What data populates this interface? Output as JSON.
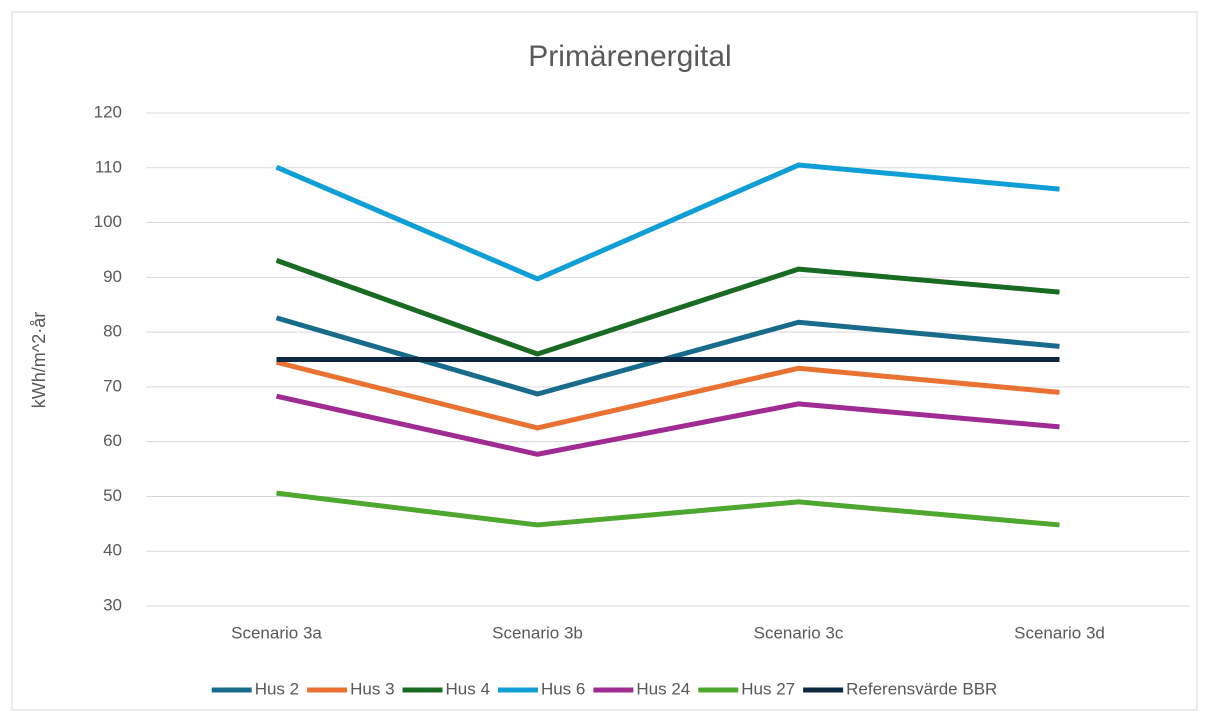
{
  "chart_data": {
    "type": "line",
    "title": "Primärenergital",
    "y_label": "kWh/m^2·år",
    "categories": [
      "Scenario 3a",
      "Scenario 3b",
      "Scenario 3c",
      "Scenario 3d"
    ],
    "series": [
      {
        "name": "Hus 2",
        "color": "#196B8C",
        "values": [
          82.6,
          68.7,
          81.8,
          77.4
        ]
      },
      {
        "name": "Hus 3",
        "color": "#E97132",
        "values": [
          74.5,
          62.5,
          73.4,
          69
        ]
      },
      {
        "name": "Hus 4",
        "color": "#196B24",
        "values": [
          93.1,
          76,
          91.5,
          87.3
        ]
      },
      {
        "name": "Hus 6",
        "color": "#0F9ED5",
        "values": [
          110.1,
          89.7,
          110.5,
          106.1
        ]
      },
      {
        "name": "Hus 24",
        "color": "#A02B93",
        "values": [
          68.3,
          57.7,
          66.9,
          62.7
        ]
      },
      {
        "name": "Hus 27",
        "color": "#4EA72E",
        "values": [
          50.6,
          44.8,
          49,
          44.8
        ]
      },
      {
        "name": "Referensvärde BBR",
        "color": "#0E2841",
        "values": [
          75,
          75,
          75,
          75
        ]
      }
    ],
    "ylim": [
      30,
      120
    ],
    "yticks": [
      30,
      40,
      50,
      60,
      70,
      80,
      90,
      100,
      110,
      120
    ],
    "grid": true,
    "legend": "bottom"
  }
}
